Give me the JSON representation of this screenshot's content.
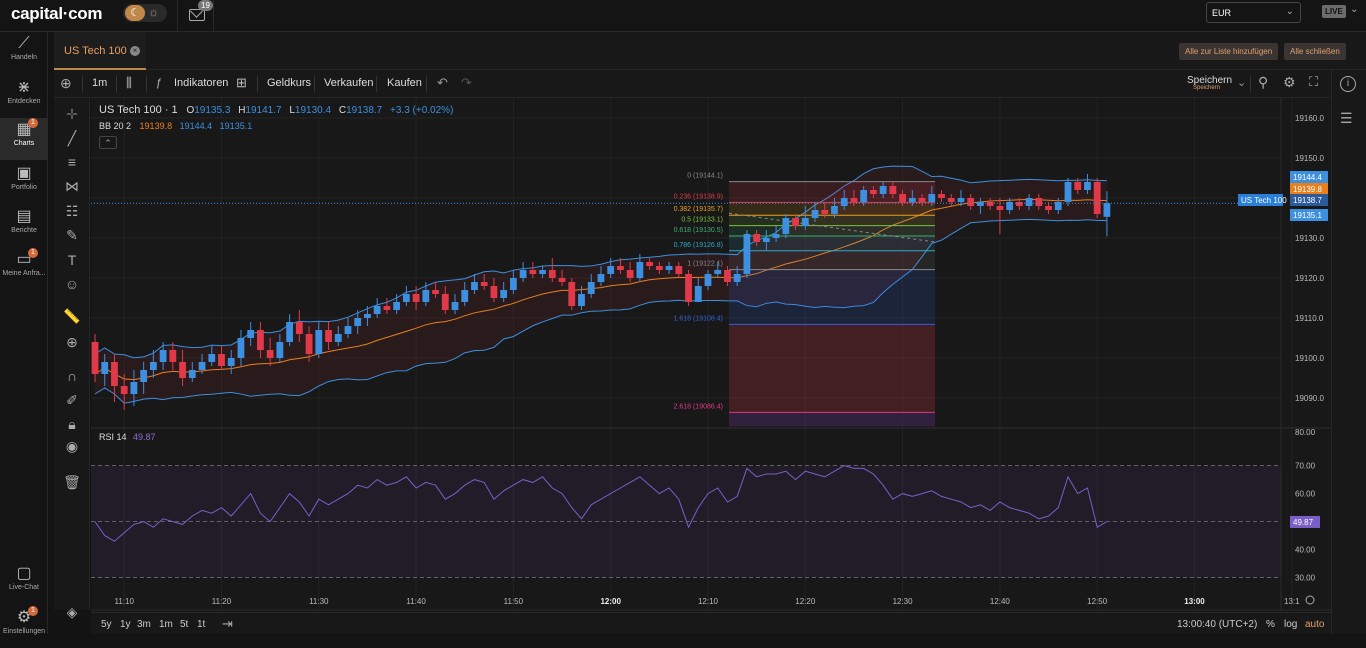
{
  "header": {
    "logo": "capital·com",
    "mail_badge": "19",
    "currency": "EUR",
    "mode": "LIVE"
  },
  "nav": [
    {
      "label": "Handeln",
      "icon": "trend-icon"
    },
    {
      "label": "Entdecken",
      "icon": "network-icon"
    },
    {
      "label": "Charts",
      "icon": "chart-icon",
      "badge": "1",
      "active": true
    },
    {
      "label": "Portfolio",
      "icon": "briefcase-icon"
    },
    {
      "label": "Berichte",
      "icon": "report-icon"
    },
    {
      "label": "Meine Anfra...",
      "icon": "folder-icon",
      "badge": "1"
    },
    {
      "label": "Live-Chat",
      "icon": "chat-icon"
    },
    {
      "label": "Einstellungen",
      "icon": "gear-icon",
      "badge": "1"
    }
  ],
  "tab": {
    "label": "US Tech 100"
  },
  "tab_actions": {
    "add_all": "Alle zur Liste hinzufügen",
    "close_all": "Alle schließen"
  },
  "toolbar": {
    "interval": "1m",
    "indicators": "Indikatoren",
    "bid": "Geldkurs",
    "sell": "Verkaufen",
    "buy": "Kaufen",
    "save": "Speichern",
    "save_sub": "Speichern"
  },
  "legend": {
    "symbol": "US Tech 100 · 1",
    "o_label": "O",
    "o": "19135.3",
    "h_label": "H",
    "h": "19141.7",
    "l_label": "L",
    "l": "19130.4",
    "c_label": "C",
    "c": "19138.7",
    "change": "+3.3 (+0.02%)",
    "bb_label": "BB 20 2",
    "bb_mid": "19139.8",
    "bb_up": "19144.4",
    "bb_low": "19135.1",
    "rsi_label": "RSI 14",
    "rsi_val": "49.87"
  },
  "colors": {
    "up": "#3d8fe0",
    "down": "#e03a4a",
    "bb_band": "#3d8fe0",
    "bb_mid": "#e87f1c",
    "rsi": "#7a5fc8",
    "accent": "#c0874a"
  },
  "fib": [
    {
      "label": "0 (19144.1)",
      "color": "#8a8a8a"
    },
    {
      "label": "0.236 (19138.9)",
      "color": "#e03a4a"
    },
    {
      "label": "0.382 (19135.7)",
      "color": "#e8a020"
    },
    {
      "label": "0.5 (19133.1)",
      "color": "#7ac040"
    },
    {
      "label": "0.618 (19130.5)",
      "color": "#3ab070"
    },
    {
      "label": "0.786 (19126.8)",
      "color": "#30a8c8"
    },
    {
      "label": "1 (19122.1)",
      "color": "#8a8a8a"
    },
    {
      "label": "1.618 (19108.4)",
      "color": "#3060d8"
    },
    {
      "label": "2.618 (19086.4)",
      "color": "#e03a80"
    }
  ],
  "price_axis": [
    "19160.0",
    "19150.0",
    "19140.0",
    "19130.0",
    "19120.0",
    "19110.0",
    "19100.0",
    "19090.0",
    "80.00"
  ],
  "price_tags": {
    "upper": "19144.4",
    "mid": "19139.8",
    "last": "19138.7",
    "lower": "19135.1",
    "symbol": "US Tech 100",
    "rsi": "49.87"
  },
  "rsi_axis": [
    "70.00",
    "60.00",
    "50.00",
    "40.00",
    "30.00"
  ],
  "time_axis": [
    "11:10",
    "11:20",
    "11:30",
    "11:40",
    "11:50",
    "12:00",
    "12:10",
    "12:20",
    "12:30",
    "12:40",
    "12:50",
    "13:00",
    "13:1"
  ],
  "ranges": [
    "5y",
    "1y",
    "3m",
    "1m",
    "5t",
    "1t"
  ],
  "clock": "13:00:40 (UTC+2)",
  "scale": {
    "pct": "%",
    "log": "log",
    "auto": "auto"
  },
  "chart_data": {
    "type": "candlestick",
    "x_start": "11:07",
    "x_step_minutes": 1,
    "ylim": [
      19083,
      19165
    ],
    "candles": [
      [
        19104,
        19096,
        19106,
        19094
      ],
      [
        19096,
        19099,
        19101,
        19093
      ],
      [
        19099,
        19093,
        19101,
        19089
      ],
      [
        19093,
        19091,
        19096,
        19087
      ],
      [
        19091,
        19094,
        19097,
        19088
      ],
      [
        19094,
        19097,
        19099,
        19091
      ],
      [
        19097,
        19099,
        19102,
        19095
      ],
      [
        19099,
        19102,
        19104,
        19097
      ],
      [
        19102,
        19099,
        19104,
        19097
      ],
      [
        19099,
        19095,
        19102,
        19093
      ],
      [
        19095,
        19097,
        19099,
        19094
      ],
      [
        19097,
        19099,
        19101,
        19096
      ],
      [
        19099,
        19101,
        19103,
        19098
      ],
      [
        19101,
        19098,
        19103,
        19097
      ],
      [
        19098,
        19100,
        19102,
        19096
      ],
      [
        19100,
        19105,
        19107,
        19098
      ],
      [
        19105,
        19107,
        19109,
        19103
      ],
      [
        19107,
        19102,
        19109,
        19100
      ],
      [
        19102,
        19100,
        19105,
        19098
      ],
      [
        19100,
        19104,
        19106,
        19099
      ],
      [
        19104,
        19109,
        19111,
        19103
      ],
      [
        19109,
        19106,
        19112,
        19104
      ],
      [
        19106,
        19101,
        19108,
        19099
      ],
      [
        19101,
        19107,
        19109,
        19100
      ],
      [
        19107,
        19104,
        19109,
        19102
      ],
      [
        19104,
        19106,
        19108,
        19103
      ],
      [
        19106,
        19108,
        19110,
        19105
      ],
      [
        19108,
        19110,
        19112,
        19106
      ],
      [
        19110,
        19111,
        19113,
        19108
      ],
      [
        19111,
        19113,
        19115,
        19110
      ],
      [
        19113,
        19112,
        19115,
        19111
      ],
      [
        19112,
        19114,
        19116,
        19111
      ],
      [
        19114,
        19116,
        19118,
        19113
      ],
      [
        19116,
        19114,
        19118,
        19112
      ],
      [
        19114,
        19117,
        19119,
        19113
      ],
      [
        19117,
        19116,
        19119,
        19115
      ],
      [
        19116,
        19112,
        19118,
        19111
      ],
      [
        19112,
        19114,
        19116,
        19111
      ],
      [
        19114,
        19117,
        19119,
        19113
      ],
      [
        19117,
        19119,
        19121,
        19116
      ],
      [
        19119,
        19118,
        19121,
        19117
      ],
      [
        19118,
        19115,
        19120,
        19114
      ],
      [
        19115,
        19117,
        19119,
        19114
      ],
      [
        19117,
        19120,
        19122,
        19116
      ],
      [
        19120,
        19122,
        19124,
        19119
      ],
      [
        19122,
        19121,
        19124,
        19120
      ],
      [
        19121,
        19122,
        19123,
        19120
      ],
      [
        19122,
        19120,
        19125,
        19119
      ],
      [
        19120,
        19119,
        19122,
        19118
      ],
      [
        19119,
        19113,
        19120,
        19112
      ],
      [
        19113,
        19116,
        19118,
        19112
      ],
      [
        19116,
        19119,
        19121,
        19115
      ],
      [
        19119,
        19121,
        19123,
        19118
      ],
      [
        19121,
        19123,
        19125,
        19120
      ],
      [
        19123,
        19122,
        19125,
        19121
      ],
      [
        19122,
        19120,
        19124,
        19119
      ],
      [
        19120,
        19124,
        19126,
        19119
      ],
      [
        19124,
        19123,
        19125,
        19122
      ],
      [
        19123,
        19122,
        19124,
        19121
      ],
      [
        19122,
        19123,
        19124,
        19121
      ],
      [
        19123,
        19121,
        19124,
        19120
      ],
      [
        19121,
        19114,
        19122,
        19113
      ],
      [
        19114,
        19118,
        19120,
        19115
      ],
      [
        19118,
        19121,
        19122,
        19117
      ],
      [
        19121,
        19122,
        19124,
        19120
      ],
      [
        19122,
        19119,
        19123,
        19118
      ],
      [
        19119,
        19121,
        19123,
        19118
      ],
      [
        19121,
        19131,
        19132,
        19120
      ],
      [
        19131,
        19129,
        19132,
        19128
      ],
      [
        19129,
        19130,
        19132,
        19127
      ],
      [
        19130,
        19131,
        19133,
        19129
      ],
      [
        19131,
        19135,
        19136,
        19130
      ],
      [
        19135,
        19133,
        19136,
        19132
      ],
      [
        19133,
        19135,
        19138,
        19132
      ],
      [
        19135,
        19137,
        19139,
        19134
      ],
      [
        19137,
        19136,
        19139,
        19135
      ],
      [
        19136,
        19138,
        19140,
        19135
      ],
      [
        19138,
        19140,
        19142,
        19137
      ],
      [
        19140,
        19139,
        19142,
        19138
      ],
      [
        19139,
        19142,
        19143,
        19138
      ],
      [
        19142,
        19141,
        19143,
        19140
      ],
      [
        19141,
        19143,
        19144,
        19140
      ],
      [
        19143,
        19141,
        19144,
        19140
      ],
      [
        19141,
        19139,
        19142,
        19138
      ],
      [
        19139,
        19140,
        19142,
        19138
      ],
      [
        19140,
        19139,
        19141,
        19138
      ],
      [
        19139,
        19141,
        19143,
        19138
      ],
      [
        19141,
        19140,
        19142,
        19139
      ],
      [
        19140,
        19139,
        19141,
        19138
      ],
      [
        19139,
        19140,
        19142,
        19138
      ],
      [
        19140,
        19138,
        19141,
        19137
      ],
      [
        19138,
        19139,
        19140,
        19136
      ],
      [
        19139,
        19138,
        19140,
        19137
      ],
      [
        19138,
        19137,
        19140,
        19131
      ],
      [
        19137,
        19139,
        19140,
        19136
      ],
      [
        19139,
        19138,
        19140,
        19137
      ],
      [
        19138,
        19140,
        19141,
        19137
      ],
      [
        19140,
        19138,
        19141,
        19137
      ],
      [
        19138,
        19137,
        19139,
        19136
      ],
      [
        19137,
        19139,
        19140,
        19136
      ],
      [
        19139,
        19144,
        19145,
        19138
      ],
      [
        19144,
        19142,
        19145,
        19141
      ],
      [
        19142,
        19144,
        19146,
        19141
      ],
      [
        19144,
        19136,
        19145,
        19135
      ],
      [
        19135.3,
        19138.7,
        19141.7,
        19130.4
      ]
    ],
    "rsi": [
      50,
      45,
      43,
      46,
      49,
      50,
      48,
      51,
      50,
      49,
      52,
      54,
      53,
      55,
      52,
      56,
      60,
      53,
      50,
      55,
      60,
      57,
      52,
      58,
      56,
      58,
      60,
      63,
      62,
      65,
      63,
      64,
      66,
      62,
      64,
      63,
      58,
      60,
      63,
      65,
      64,
      58,
      61,
      63,
      65,
      64,
      66,
      62,
      60,
      55,
      51,
      56,
      58,
      60,
      62,
      64,
      66,
      63,
      60,
      62,
      58,
      48,
      55,
      60,
      62,
      57,
      59,
      69,
      66,
      67,
      67,
      68,
      65,
      68,
      67,
      66,
      68,
      70,
      69,
      69,
      67,
      63,
      58,
      60,
      59,
      60,
      61,
      59,
      58,
      57,
      55,
      56,
      54,
      57,
      55,
      54,
      53,
      51,
      52,
      55,
      66,
      60,
      62,
      48,
      50
    ]
  }
}
